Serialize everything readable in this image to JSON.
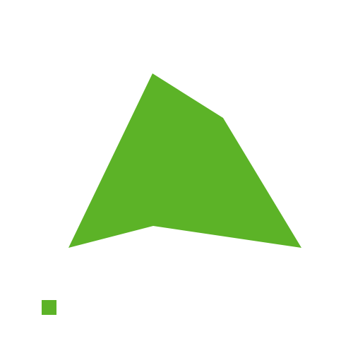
{
  "shapes": {
    "polygon": {
      "kind": "polygon",
      "fill": "#5cb327"
    },
    "marker": {
      "kind": "square",
      "fill": "#5cb327"
    }
  }
}
